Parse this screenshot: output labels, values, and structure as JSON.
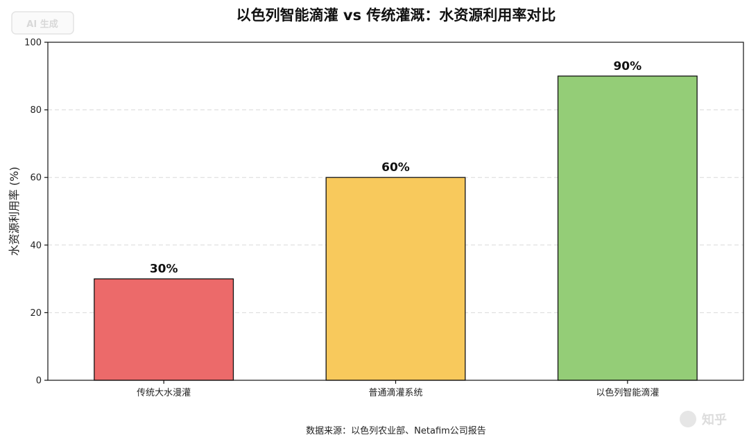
{
  "badge": {
    "label": "AI 生成"
  },
  "watermark": {
    "label": "知乎"
  },
  "source_note": "数据来源：以色列农业部、Netafim公司报告",
  "chart_data": {
    "type": "bar",
    "title": "以色列智能滴灌 vs 传统灌溉：水资源利用率对比",
    "xlabel": "",
    "ylabel": "水资源利用率 (%)",
    "categories": [
      "传统大水漫灌",
      "普通滴灌系统",
      "以色列智能滴灌"
    ],
    "values": [
      30,
      60,
      90
    ],
    "value_labels": [
      "30%",
      "60%",
      "90%"
    ],
    "colors": [
      "#ec6a6a",
      "#f8c95c",
      "#94cd77"
    ],
    "ylim": [
      0,
      100
    ],
    "yticks": [
      0,
      20,
      40,
      60,
      80,
      100
    ],
    "grid": true,
    "legend": "none"
  }
}
